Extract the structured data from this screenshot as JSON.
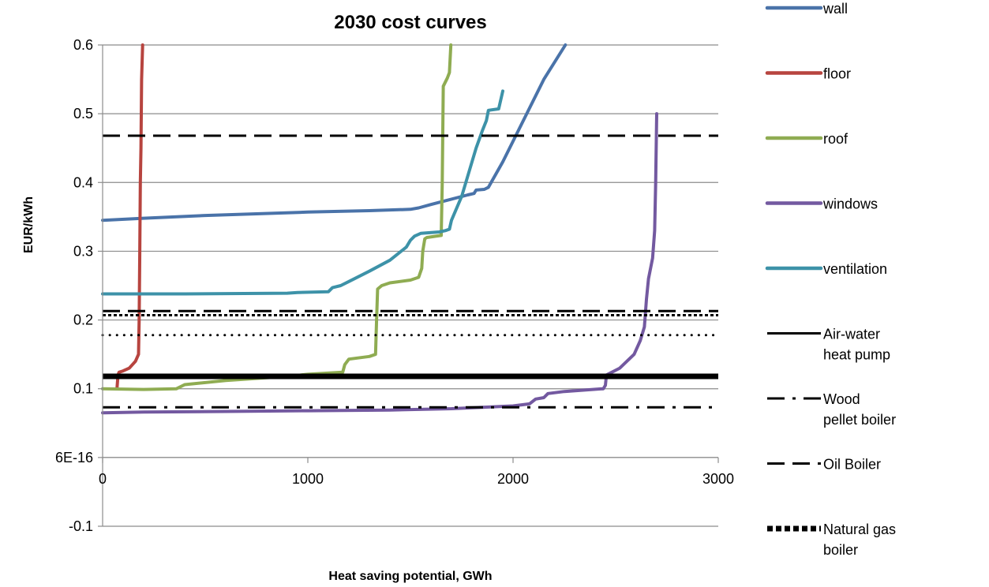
{
  "chart_data": {
    "type": "line",
    "title": "2030 cost curves",
    "xlabel": "Heat saving potential, GWh",
    "ylabel": "EUR/kWh",
    "xlim": [
      0,
      3000
    ],
    "ylim": [
      -0.1,
      0.6
    ],
    "x_ticks": [
      "0",
      "1000",
      "2000",
      "3000"
    ],
    "y_ticks": [
      "-0.1",
      "6E-16",
      "0.1",
      "0.2",
      "0.3",
      "0.4",
      "0.5",
      "0.6"
    ],
    "grid": "horizontal",
    "legend_position": "right",
    "series": [
      {
        "name": "wall",
        "color": "#4a73a9",
        "points": [
          [
            0,
            0.345
          ],
          [
            200,
            0.348
          ],
          [
            500,
            0.352
          ],
          [
            1000,
            0.357
          ],
          [
            1300,
            0.359
          ],
          [
            1500,
            0.361
          ],
          [
            1540,
            0.363
          ],
          [
            1600,
            0.368
          ],
          [
            1780,
            0.382
          ],
          [
            1810,
            0.384
          ],
          [
            1820,
            0.389
          ],
          [
            1860,
            0.39
          ],
          [
            1880,
            0.393
          ],
          [
            1950,
            0.43
          ],
          [
            2050,
            0.49
          ],
          [
            2150,
            0.55
          ],
          [
            2255,
            0.6
          ]
        ]
      },
      {
        "name": "floor",
        "color": "#b7443f",
        "points": [
          [
            70,
            0.1
          ],
          [
            75,
            0.12
          ],
          [
            80,
            0.124
          ],
          [
            100,
            0.126
          ],
          [
            130,
            0.13
          ],
          [
            160,
            0.14
          ],
          [
            175,
            0.15
          ],
          [
            178,
            0.2
          ],
          [
            181,
            0.3
          ],
          [
            184,
            0.4
          ],
          [
            187,
            0.45
          ],
          [
            190,
            0.55
          ],
          [
            195,
            0.6
          ]
        ]
      },
      {
        "name": "roof",
        "color": "#8fac52",
        "points": [
          [
            0,
            0.1
          ],
          [
            200,
            0.099
          ],
          [
            360,
            0.1
          ],
          [
            400,
            0.106
          ],
          [
            600,
            0.112
          ],
          [
            900,
            0.118
          ],
          [
            1000,
            0.121
          ],
          [
            1170,
            0.124
          ],
          [
            1180,
            0.135
          ],
          [
            1200,
            0.143
          ],
          [
            1300,
            0.147
          ],
          [
            1330,
            0.15
          ],
          [
            1335,
            0.2
          ],
          [
            1340,
            0.245
          ],
          [
            1360,
            0.25
          ],
          [
            1400,
            0.254
          ],
          [
            1500,
            0.258
          ],
          [
            1540,
            0.262
          ],
          [
            1555,
            0.275
          ],
          [
            1560,
            0.3
          ],
          [
            1570,
            0.318
          ],
          [
            1580,
            0.32
          ],
          [
            1650,
            0.323
          ],
          [
            1655,
            0.4
          ],
          [
            1660,
            0.54
          ],
          [
            1680,
            0.552
          ],
          [
            1690,
            0.56
          ],
          [
            1697,
            0.6
          ]
        ]
      },
      {
        "name": "windows",
        "color": "#7359a0",
        "points": [
          [
            0,
            0.065
          ],
          [
            200,
            0.066
          ],
          [
            600,
            0.067
          ],
          [
            1000,
            0.068
          ],
          [
            1400,
            0.069
          ],
          [
            1700,
            0.071
          ],
          [
            2000,
            0.075
          ],
          [
            2080,
            0.078
          ],
          [
            2110,
            0.085
          ],
          [
            2150,
            0.087
          ],
          [
            2170,
            0.093
          ],
          [
            2250,
            0.096
          ],
          [
            2440,
            0.1
          ],
          [
            2450,
            0.105
          ],
          [
            2455,
            0.12
          ],
          [
            2520,
            0.13
          ],
          [
            2590,
            0.15
          ],
          [
            2620,
            0.17
          ],
          [
            2640,
            0.19
          ],
          [
            2650,
            0.23
          ],
          [
            2660,
            0.26
          ],
          [
            2680,
            0.29
          ],
          [
            2690,
            0.33
          ],
          [
            2695,
            0.4
          ],
          [
            2700,
            0.5
          ]
        ]
      },
      {
        "name": "ventilation",
        "color": "#3d92a8",
        "points": [
          [
            0,
            0.238
          ],
          [
            400,
            0.238
          ],
          [
            900,
            0.239
          ],
          [
            950,
            0.24
          ],
          [
            1100,
            0.241
          ],
          [
            1120,
            0.247
          ],
          [
            1160,
            0.25
          ],
          [
            1200,
            0.256
          ],
          [
            1300,
            0.271
          ],
          [
            1400,
            0.287
          ],
          [
            1480,
            0.306
          ],
          [
            1500,
            0.316
          ],
          [
            1520,
            0.322
          ],
          [
            1550,
            0.326
          ],
          [
            1640,
            0.328
          ],
          [
            1670,
            0.33
          ],
          [
            1690,
            0.332
          ],
          [
            1700,
            0.345
          ],
          [
            1750,
            0.38
          ],
          [
            1800,
            0.43
          ],
          [
            1820,
            0.45
          ],
          [
            1850,
            0.475
          ],
          [
            1870,
            0.49
          ],
          [
            1880,
            0.505
          ],
          [
            1930,
            0.507
          ],
          [
            1950,
            0.533
          ]
        ]
      },
      {
        "name": "Air-water heat pump",
        "color": "#000000",
        "style": "solid",
        "points": [
          [
            0,
            0.118
          ],
          [
            3000,
            0.118
          ]
        ]
      },
      {
        "name": "Wood pellet boiler",
        "color": "#000000",
        "style": "dashdot",
        "points": [
          [
            0,
            0.073
          ],
          [
            3000,
            0.073
          ]
        ]
      },
      {
        "name": "Oil Boiler",
        "color": "#000000",
        "style": "longdash",
        "points": [
          [
            0,
            0.468
          ],
          [
            3000,
            0.468
          ]
        ]
      },
      {
        "name": "Oil Boiler",
        "color": "#000000",
        "style": "longdash",
        "points": [
          [
            0,
            0.213
          ],
          [
            3000,
            0.213
          ]
        ]
      },
      {
        "name": "Natural gas boiler",
        "color": "#000000",
        "style": "squaredot",
        "points": [
          [
            0,
            0.207
          ],
          [
            3000,
            0.207
          ]
        ]
      },
      {
        "name": "Natural gas boiler",
        "color": "#000000",
        "style": "roundot",
        "points": [
          [
            0,
            0.178
          ],
          [
            3000,
            0.178
          ]
        ]
      }
    ],
    "legend": [
      {
        "lines": [
          "wall"
        ],
        "color": "#4a73a9",
        "style": "solid-thick"
      },
      {
        "lines": [
          "floor"
        ],
        "color": "#b7443f",
        "style": "solid-thick"
      },
      {
        "lines": [
          "roof"
        ],
        "color": "#8fac52",
        "style": "solid-thick"
      },
      {
        "lines": [
          "windows"
        ],
        "color": "#7359a0",
        "style": "solid-thick"
      },
      {
        "lines": [
          "ventilation"
        ],
        "color": "#3d92a8",
        "style": "solid-thick"
      },
      {
        "lines": [
          "Air-water",
          "heat pump"
        ],
        "color": "#000000",
        "style": "solid"
      },
      {
        "lines": [
          "Wood",
          "pellet boiler"
        ],
        "color": "#000000",
        "style": "dashdot"
      },
      {
        "lines": [
          "Oil Boiler"
        ],
        "color": "#000000",
        "style": "longdash"
      },
      {
        "lines": [
          "Natural gas",
          "boiler"
        ],
        "color": "#000000",
        "style": "squaredot"
      }
    ]
  }
}
